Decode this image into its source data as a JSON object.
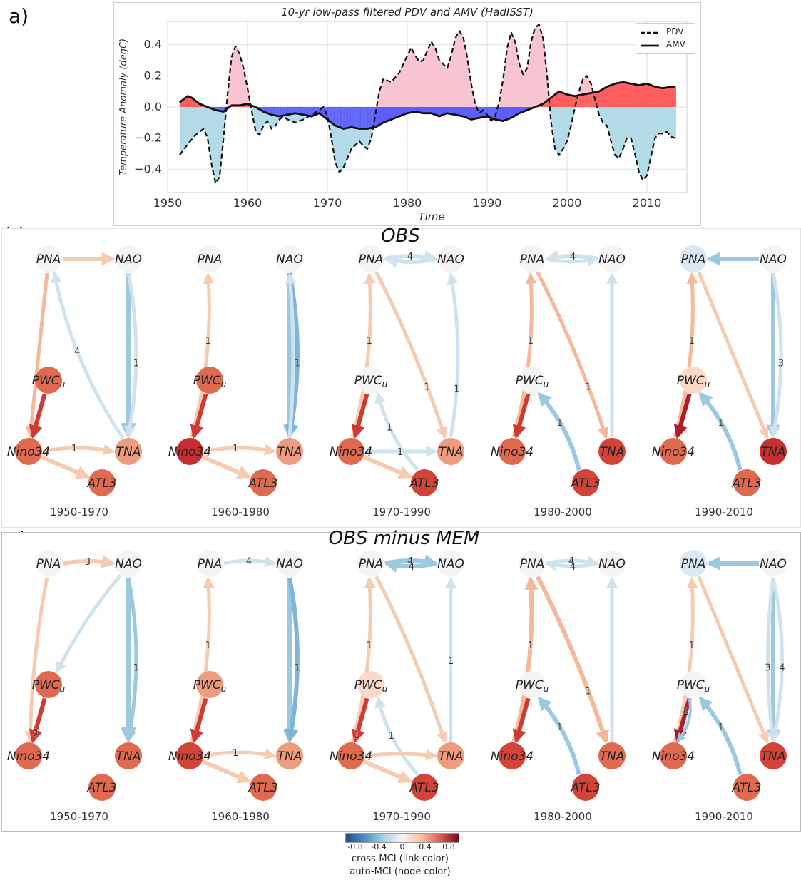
{
  "panels": {
    "a_letter": "a)",
    "b_letter": "b)",
    "c_letter": "c)",
    "b_title": "OBS",
    "c_title": "OBS minus MEM"
  },
  "chart_data": {
    "type": "line",
    "title": "10-yr low-pass filtered PDV and AMV (HadISST)",
    "xlabel": "Time",
    "ylabel": "Temperature Anomaly (degC)",
    "xlim": [
      1950,
      2015
    ],
    "ylim": [
      -0.55,
      0.55
    ],
    "xticks": [
      1950,
      1960,
      1970,
      1980,
      1990,
      2000,
      2010
    ],
    "yticks": [
      -0.4,
      -0.2,
      0.0,
      0.2,
      0.4
    ],
    "ytick_labels": [
      "−0.4",
      "−0.2",
      "0.0",
      "0.2",
      "0.4"
    ],
    "grid": true,
    "legend_position": "top-right",
    "series": [
      {
        "name": "PDV",
        "style": "dashed",
        "x": [
          1951.5,
          1952.5,
          1953.5,
          1954.5,
          1955.0,
          1955.5,
          1956.0,
          1956.5,
          1957.0,
          1957.5,
          1958.0,
          1958.5,
          1959.0,
          1959.5,
          1960.0,
          1960.5,
          1961.0,
          1961.5,
          1962.0,
          1962.5,
          1963.0,
          1963.5,
          1964.0,
          1964.5,
          1965.0,
          1966.0,
          1967.0,
          1968.0,
          1969.0,
          1969.5,
          1970.0,
          1970.5,
          1971.0,
          1971.5,
          1972.0,
          1972.5,
          1973.0,
          1974.0,
          1974.5,
          1975.0,
          1975.5,
          1976.0,
          1976.5,
          1977.0,
          1977.5,
          1978.0,
          1979.0,
          1980.0,
          1980.5,
          1981.0,
          1981.5,
          1982.0,
          1982.5,
          1983.0,
          1983.5,
          1984.0,
          1985.0,
          1985.5,
          1986.0,
          1986.5,
          1987.0,
          1987.5,
          1988.0,
          1988.5,
          1989.0,
          1989.5,
          1990.0,
          1990.5,
          1991.0,
          1991.5,
          1992.0,
          1992.5,
          1993.0,
          1993.5,
          1994.0,
          1994.5,
          1995.0,
          1995.5,
          1996.0,
          1996.5,
          1997.0,
          1997.5,
          1998.0,
          1998.5,
          1999.0,
          1999.5,
          2000.0,
          2000.5,
          2001.0,
          2001.5,
          2002.0,
          2002.5,
          2003.0,
          2003.5,
          2004.0,
          2004.5,
          2005.0,
          2005.5,
          2006.0,
          2006.5,
          2007.0,
          2007.5,
          2008.0,
          2008.5,
          2009.0,
          2009.5,
          2010.0,
          2010.5,
          2011.0,
          2011.5,
          2012.0,
          2012.5,
          2013.0,
          2013.5
        ],
        "y": [
          -0.31,
          -0.24,
          -0.18,
          -0.14,
          -0.2,
          -0.37,
          -0.49,
          -0.45,
          -0.2,
          0.08,
          0.32,
          0.39,
          0.34,
          0.25,
          0.12,
          -0.02,
          -0.15,
          -0.18,
          -0.12,
          -0.09,
          -0.14,
          -0.12,
          -0.08,
          -0.06,
          -0.08,
          -0.1,
          -0.08,
          -0.05,
          -0.02,
          0.0,
          -0.06,
          -0.2,
          -0.36,
          -0.42,
          -0.39,
          -0.33,
          -0.27,
          -0.22,
          -0.25,
          -0.27,
          -0.2,
          -0.05,
          0.1,
          0.18,
          0.17,
          0.16,
          0.22,
          0.33,
          0.38,
          0.33,
          0.29,
          0.3,
          0.36,
          0.42,
          0.38,
          0.3,
          0.25,
          0.33,
          0.44,
          0.49,
          0.45,
          0.32,
          0.15,
          0.02,
          -0.04,
          -0.02,
          -0.05,
          -0.09,
          -0.06,
          0.03,
          0.18,
          0.38,
          0.48,
          0.42,
          0.28,
          0.21,
          0.25,
          0.42,
          0.51,
          0.53,
          0.44,
          0.2,
          -0.1,
          -0.27,
          -0.31,
          -0.27,
          -0.22,
          -0.12,
          0.0,
          0.1,
          0.18,
          0.2,
          0.15,
          0.05,
          -0.05,
          -0.1,
          -0.12,
          -0.22,
          -0.31,
          -0.33,
          -0.27,
          -0.2,
          -0.2,
          -0.3,
          -0.42,
          -0.47,
          -0.44,
          -0.32,
          -0.2,
          -0.17,
          -0.17,
          -0.16,
          -0.19,
          -0.2
        ],
        "color": "#111111"
      },
      {
        "name": "AMV",
        "style": "solid",
        "x": [
          1951.5,
          1952.0,
          1952.5,
          1953.0,
          1953.5,
          1954.0,
          1955.0,
          1956.0,
          1957.0,
          1958.0,
          1959.0,
          1960.0,
          1961.0,
          1962.0,
          1963.0,
          1964.0,
          1965.0,
          1966.0,
          1967.0,
          1968.0,
          1969.0,
          1970.0,
          1971.0,
          1972.0,
          1973.0,
          1974.0,
          1975.0,
          1976.0,
          1977.0,
          1978.0,
          1979.0,
          1980.0,
          1981.0,
          1982.0,
          1983.0,
          1984.0,
          1985.0,
          1986.0,
          1987.0,
          1988.0,
          1989.0,
          1990.0,
          1991.0,
          1992.0,
          1993.0,
          1994.0,
          1995.0,
          1996.0,
          1997.0,
          1998.0,
          1999.0,
          2000.0,
          2001.0,
          2002.0,
          2003.0,
          2004.0,
          2005.0,
          2006.0,
          2007.0,
          2008.0,
          2009.0,
          2010.0,
          2011.0,
          2012.0,
          2013.0,
          2013.5
        ],
        "y": [
          0.03,
          0.05,
          0.07,
          0.06,
          0.04,
          0.02,
          0.0,
          -0.02,
          -0.03,
          0.01,
          0.01,
          0.02,
          0.0,
          -0.03,
          -0.05,
          -0.06,
          -0.05,
          -0.04,
          -0.05,
          -0.06,
          -0.04,
          -0.08,
          -0.12,
          -0.14,
          -0.13,
          -0.14,
          -0.14,
          -0.13,
          -0.1,
          -0.08,
          -0.06,
          -0.04,
          -0.03,
          -0.04,
          -0.04,
          -0.06,
          -0.04,
          -0.05,
          -0.06,
          -0.08,
          -0.07,
          -0.06,
          -0.08,
          -0.09,
          -0.07,
          -0.04,
          -0.02,
          0.0,
          0.02,
          0.06,
          0.1,
          0.08,
          0.07,
          0.08,
          0.09,
          0.1,
          0.13,
          0.15,
          0.16,
          0.15,
          0.14,
          0.15,
          0.13,
          0.12,
          0.13,
          0.13
        ],
        "color": "#111111"
      }
    ]
  },
  "networks": {
    "node_labels": {
      "pna": "PNA",
      "nao": "NAO",
      "pwc": "PWC",
      "pwc_sub": "u",
      "nino": "Nino34",
      "tna": "TNA",
      "atl": "ATL3"
    },
    "b_periods": [
      "1950-1970",
      "1960-1980",
      "1970-1990",
      "1980-2000",
      "1990-2010"
    ],
    "c_periods": [
      "1950-1970",
      "1960-1980",
      "1970-1990",
      "1980-2000",
      "1990-2010"
    ],
    "b_edge_labels": [
      [
        "4",
        "1",
        "1"
      ],
      [
        "1",
        "1",
        "1"
      ],
      [
        "4",
        "1",
        "1",
        "1",
        "1",
        "1"
      ],
      [
        "4",
        "1",
        "1",
        "1"
      ],
      [
        "1",
        "3",
        "1"
      ]
    ],
    "c_edge_labels": [
      [
        "3",
        "1",
        "3"
      ],
      [
        "4",
        "1",
        "1",
        "1"
      ],
      [
        "4",
        "4",
        "1",
        "1",
        "1",
        "1"
      ],
      [
        "4",
        "4",
        "1",
        "1",
        "1"
      ],
      [
        "1",
        "3",
        "4",
        "2",
        "1"
      ]
    ]
  },
  "colorbar": {
    "ticks": [
      "-0.8",
      "-0.4",
      "0",
      "0.4",
      "0.8"
    ],
    "label1": "cross-MCI (link color)",
    "label2": "auto-MCI (node color)"
  },
  "legend": {
    "pdv": "PDV",
    "amv": "AMV"
  }
}
